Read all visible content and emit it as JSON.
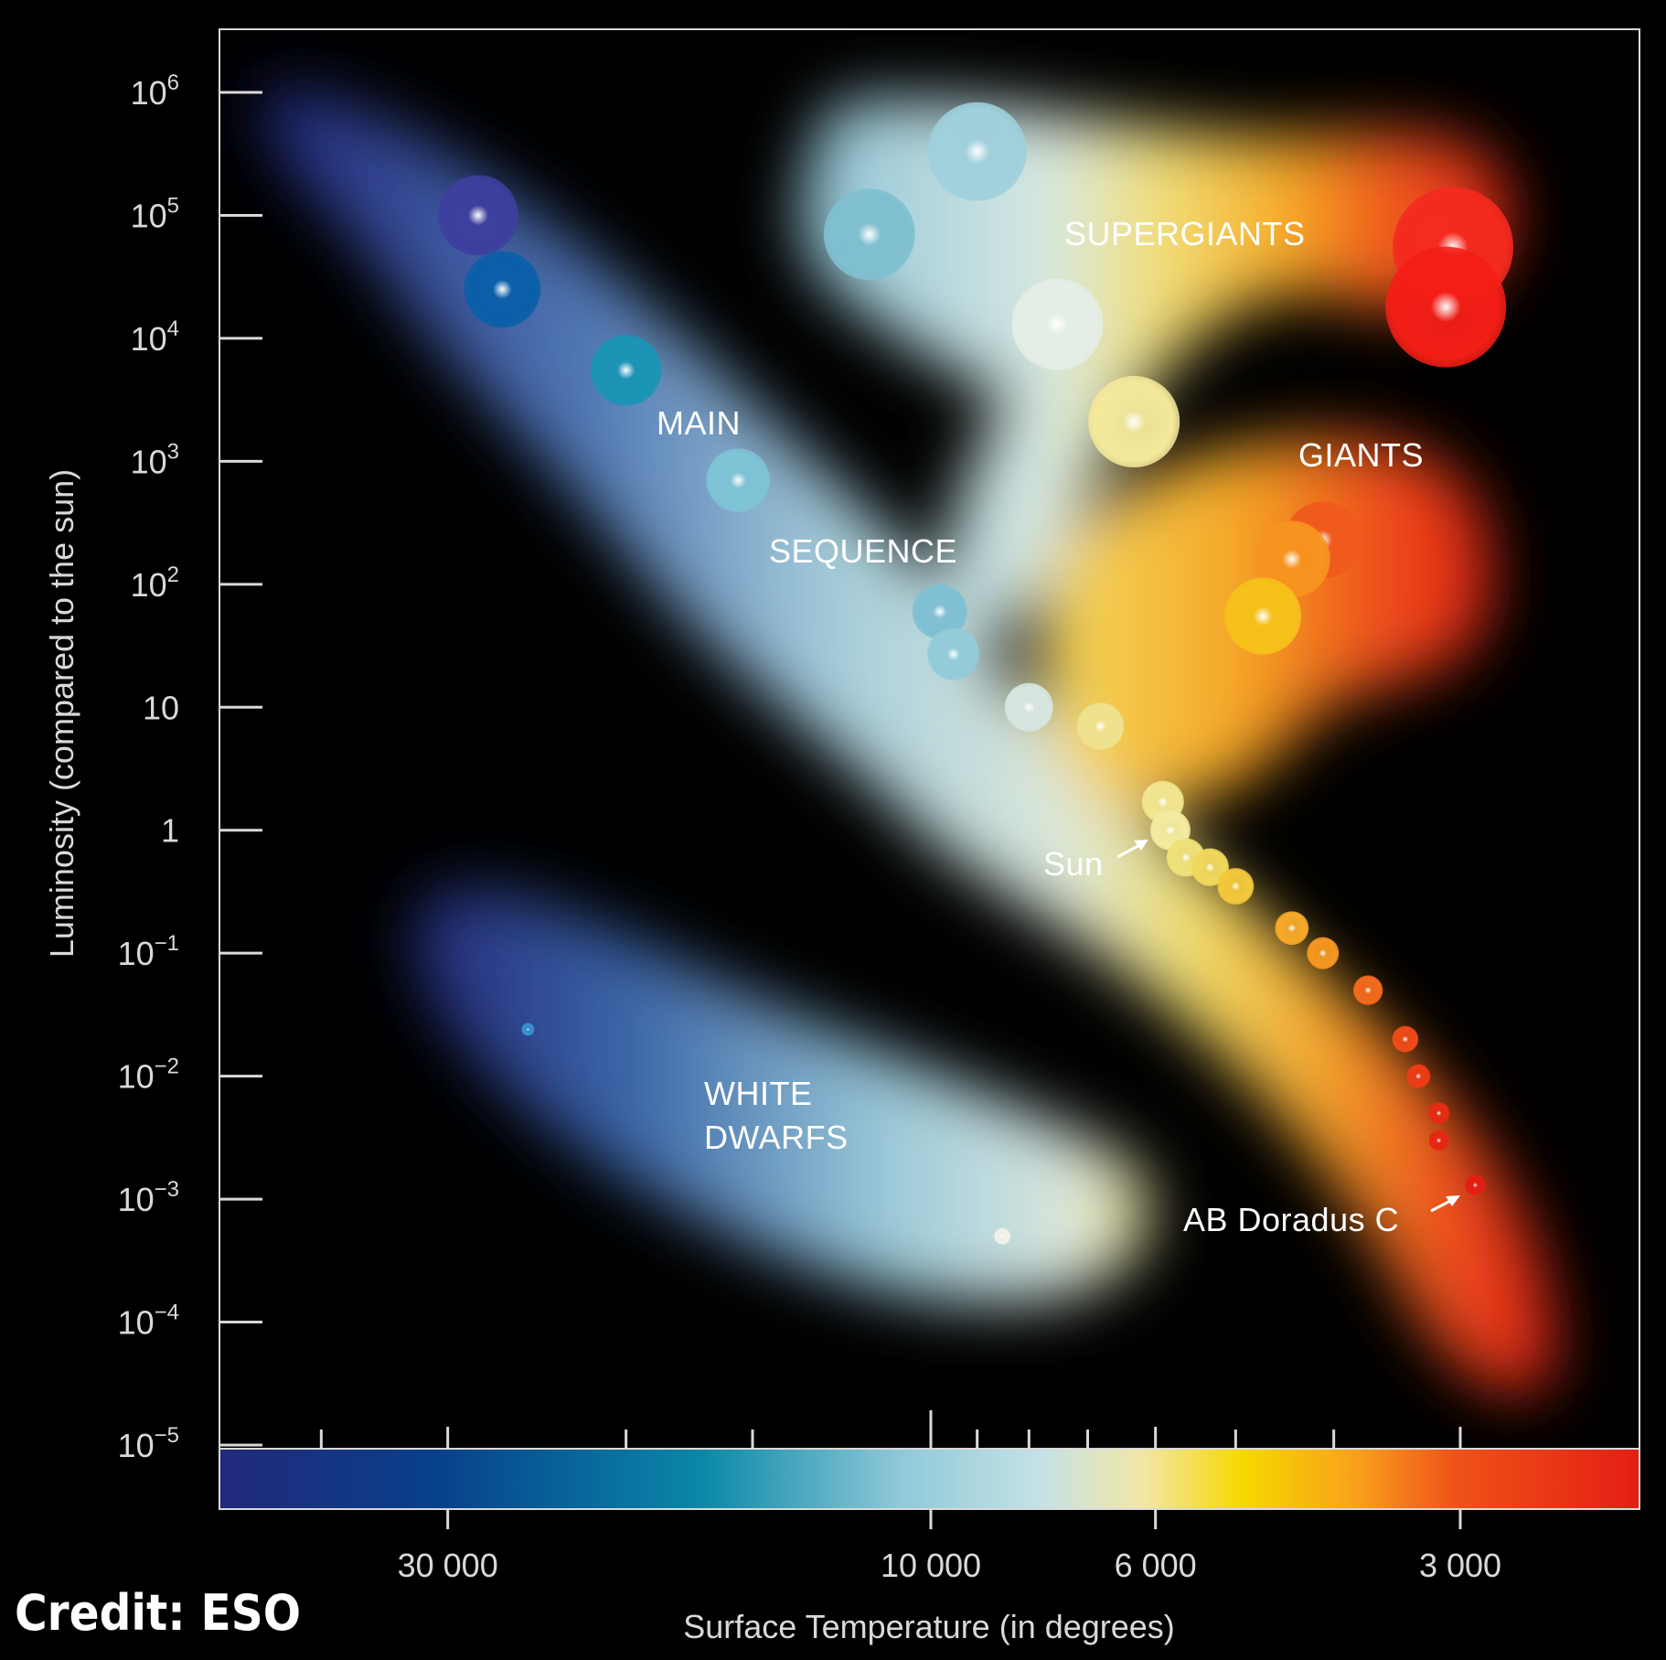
{
  "chart_data": {
    "type": "scatter",
    "title": "",
    "xlabel": "Surface Temperature (in degrees)",
    "ylabel": "Luminosity (compared to the sun)",
    "x_scale": "log-reversed",
    "y_scale": "log",
    "ylim": [
      1e-05,
      1000000
    ],
    "y_ticks": [
      {
        "value": 1000000,
        "base": "10",
        "exp": "6"
      },
      {
        "value": 100000,
        "base": "10",
        "exp": "5"
      },
      {
        "value": 10000,
        "base": "10",
        "exp": "4"
      },
      {
        "value": 1000,
        "base": "10",
        "exp": "3"
      },
      {
        "value": 100,
        "base": "10",
        "exp": "2"
      },
      {
        "value": 10,
        "base": "10",
        "exp": ""
      },
      {
        "value": 1,
        "base": "1",
        "exp": ""
      },
      {
        "value": 0.1,
        "base": "10",
        "exp": "−1"
      },
      {
        "value": 0.01,
        "base": "10",
        "exp": "−2"
      },
      {
        "value": 0.001,
        "base": "10",
        "exp": "−3"
      },
      {
        "value": 0.0001,
        "base": "10",
        "exp": "−4"
      },
      {
        "value": 1e-05,
        "base": "10",
        "exp": "−5"
      }
    ],
    "x_tick_labels": [
      {
        "value": 30000,
        "label": "30 000"
      },
      {
        "value": 10000,
        "label": "10 000"
      },
      {
        "value": 6000,
        "label": "6 000"
      },
      {
        "value": 3000,
        "label": "3 000"
      }
    ],
    "x_minor_ticks": [
      40000,
      20000,
      15000,
      9000,
      8000,
      7000,
      5000,
      4000
    ],
    "color_scale": [
      "#23297a",
      "#073f8b",
      "#0a88a8",
      "#8fc9d8",
      "#c6e2e6",
      "#f2e6a6",
      "#f6d800",
      "#f8a11c",
      "#ef5218",
      "#e41e13"
    ],
    "regions": [
      {
        "name": "main_sequence",
        "labels": [
          "MAIN",
          "SEQUENCE"
        ]
      },
      {
        "name": "supergiants",
        "labels": [
          "SUPERGIANTS"
        ]
      },
      {
        "name": "giants",
        "labels": [
          "GIANTS"
        ]
      },
      {
        "name": "white_dwarfs",
        "labels": [
          "WHITE",
          "DWARFS"
        ]
      }
    ],
    "annotations": [
      {
        "text": "Sun",
        "temperature": 5800,
        "luminosity": 1
      },
      {
        "text": "AB Doradus C",
        "temperature": 2900,
        "luminosity": 0.0013
      }
    ],
    "stars": [
      {
        "group": "main_sequence",
        "temperature": 28000,
        "luminosity": 100000,
        "color": "#3d3f9e"
      },
      {
        "group": "main_sequence",
        "temperature": 26500,
        "luminosity": 25000,
        "color": "#0a5fa8"
      },
      {
        "group": "main_sequence",
        "temperature": 20000,
        "luminosity": 5500,
        "color": "#1b94b5"
      },
      {
        "group": "main_sequence",
        "temperature": 15500,
        "luminosity": 700,
        "color": "#7fc3d6"
      },
      {
        "group": "main_sequence",
        "temperature": 9800,
        "luminosity": 60,
        "color": "#7fc0d3"
      },
      {
        "group": "main_sequence",
        "temperature": 9500,
        "luminosity": 27,
        "color": "#93cbd9"
      },
      {
        "group": "main_sequence",
        "temperature": 8000,
        "luminosity": 10,
        "color": "#d6e6df"
      },
      {
        "group": "main_sequence",
        "temperature": 6800,
        "luminosity": 7,
        "color": "#efe28f"
      },
      {
        "group": "main_sequence",
        "temperature": 5900,
        "luminosity": 1.7,
        "color": "#f1e690"
      },
      {
        "group": "main_sequence",
        "temperature": 5800,
        "luminosity": 1,
        "color": "#f3eba0"
      },
      {
        "group": "main_sequence",
        "temperature": 5600,
        "luminosity": 0.6,
        "color": "#efe27a"
      },
      {
        "group": "main_sequence",
        "temperature": 5300,
        "luminosity": 0.5,
        "color": "#f0d85c"
      },
      {
        "group": "main_sequence",
        "temperature": 5000,
        "luminosity": 0.35,
        "color": "#f3c83a"
      },
      {
        "group": "main_sequence",
        "temperature": 4400,
        "luminosity": 0.16,
        "color": "#f6a928"
      },
      {
        "group": "main_sequence",
        "temperature": 4100,
        "luminosity": 0.1,
        "color": "#f59720"
      },
      {
        "group": "main_sequence",
        "temperature": 3700,
        "luminosity": 0.05,
        "color": "#f36a1c"
      },
      {
        "group": "main_sequence",
        "temperature": 3400,
        "luminosity": 0.02,
        "color": "#ef4a17"
      },
      {
        "group": "main_sequence",
        "temperature": 3300,
        "luminosity": 0.01,
        "color": "#eb3c15"
      },
      {
        "group": "main_sequence",
        "temperature": 3150,
        "luminosity": 0.005,
        "color": "#e62b14"
      },
      {
        "group": "main_sequence",
        "temperature": 3150,
        "luminosity": 0.003,
        "color": "#e62613"
      },
      {
        "group": "main_sequence",
        "temperature": 2900,
        "luminosity": 0.0013,
        "color": "#e41e13"
      },
      {
        "group": "supergiants",
        "temperature": 9000,
        "luminosity": 330000,
        "color": "#9fd0dc"
      },
      {
        "group": "supergiants",
        "temperature": 11500,
        "luminosity": 70000,
        "color": "#7fbfd0"
      },
      {
        "group": "supergiants",
        "temperature": 7500,
        "luminosity": 13000,
        "color": "#e4eee6"
      },
      {
        "group": "supergiants",
        "temperature": 6300,
        "luminosity": 2100,
        "color": "#f4e89a"
      },
      {
        "group": "supergiants",
        "temperature": 3050,
        "luminosity": 55000,
        "color": "#f42a1e"
      },
      {
        "group": "supergiants",
        "temperature": 3100,
        "luminosity": 18000,
        "color": "#f31e16"
      },
      {
        "group": "giants",
        "temperature": 4100,
        "luminosity": 230,
        "color": "#f05a1c"
      },
      {
        "group": "giants",
        "temperature": 4400,
        "luminosity": 160,
        "color": "#f7941f"
      },
      {
        "group": "giants",
        "temperature": 4700,
        "luminosity": 55,
        "color": "#f6c21a"
      },
      {
        "group": "white_dwarfs",
        "temperature": 25000,
        "luminosity": 0.024,
        "color": "#3b8ed0"
      },
      {
        "group": "white_dwarfs",
        "temperature": 8500,
        "luminosity": 0.0005,
        "color": "#f1f1ea"
      }
    ]
  },
  "credit": "Credit: ESO"
}
